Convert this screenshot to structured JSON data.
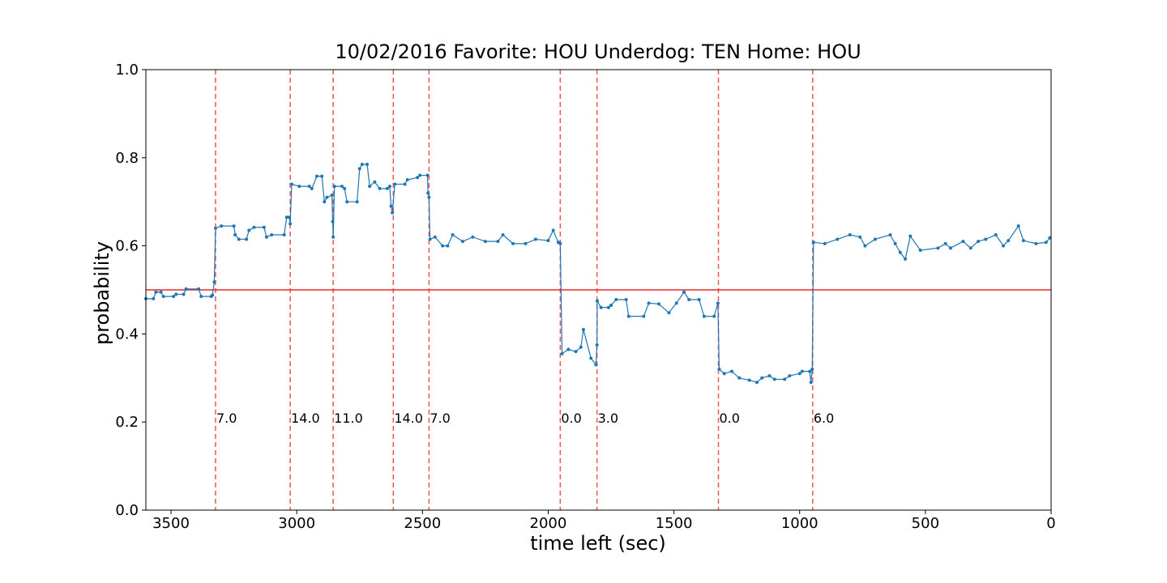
{
  "chart_data": {
    "type": "line",
    "title": "10/02/2016 Favorite: HOU Underdog: TEN Home: HOU",
    "xlabel": "time left (sec)",
    "ylabel": "probability",
    "xlim": [
      3600,
      0
    ],
    "ylim": [
      0,
      1
    ],
    "xticks": [
      3500,
      3000,
      2500,
      2000,
      1500,
      1000,
      500,
      0
    ],
    "yticks": [
      {
        "value": 0,
        "label": "0.0"
      },
      {
        "value": 0.2,
        "label": "0.2"
      },
      {
        "value": 0.4,
        "label": "0.4"
      },
      {
        "value": 0.6,
        "label": "0.6"
      },
      {
        "value": 0.8,
        "label": "0.8"
      },
      {
        "value": 1,
        "label": "1.0"
      }
    ],
    "hline": {
      "value": 0.5,
      "color": "#e8282a"
    },
    "events": {
      "color": "#f0554f",
      "label_y": 0.2,
      "x": [
        3323,
        3026,
        2855,
        2616,
        2474,
        1952,
        1806,
        1323,
        948
      ],
      "labels": [
        "7.0",
        "14.0",
        "11.0",
        "14.0",
        "7.0",
        "0.0",
        "3.0",
        "0.0",
        "6.0"
      ]
    },
    "series": [
      {
        "color": "#1f77b4",
        "x": [
          3600,
          3570,
          3560,
          3540,
          3530,
          3490,
          3480,
          3450,
          3440,
          3390,
          3380,
          3340,
          3335,
          3328,
          3323,
          3300,
          3250,
          3245,
          3230,
          3200,
          3190,
          3170,
          3130,
          3120,
          3100,
          3050,
          3040,
          3030,
          3026,
          3020,
          2990,
          2950,
          2940,
          2920,
          2900,
          2890,
          2880,
          2860,
          2857,
          2855,
          2850,
          2820,
          2810,
          2800,
          2760,
          2750,
          2740,
          2720,
          2710,
          2690,
          2670,
          2640,
          2630,
          2625,
          2620,
          2610,
          2570,
          2560,
          2520,
          2510,
          2480,
          2478,
          2474,
          2470,
          2450,
          2420,
          2400,
          2380,
          2340,
          2300,
          2250,
          2200,
          2180,
          2140,
          2090,
          2050,
          2000,
          1980,
          1960,
          1952,
          1945,
          1920,
          1890,
          1870,
          1860,
          1830,
          1810,
          1806,
          1805,
          1790,
          1760,
          1750,
          1730,
          1690,
          1680,
          1620,
          1600,
          1560,
          1520,
          1490,
          1460,
          1440,
          1400,
          1380,
          1340,
          1325,
          1320,
          1300,
          1270,
          1240,
          1200,
          1170,
          1150,
          1120,
          1100,
          1060,
          1040,
          1000,
          990,
          960,
          955,
          950,
          945,
          900,
          850,
          800,
          760,
          740,
          700,
          640,
          620,
          600,
          580,
          560,
          520,
          450,
          420,
          400,
          350,
          320,
          290,
          260,
          220,
          190,
          170,
          130,
          110,
          60,
          20,
          5
        ],
        "values": [
          0.48,
          0.48,
          0.495,
          0.495,
          0.485,
          0.485,
          0.49,
          0.49,
          0.502,
          0.502,
          0.485,
          0.485,
          0.488,
          0.518,
          0.64,
          0.645,
          0.645,
          0.625,
          0.615,
          0.615,
          0.635,
          0.642,
          0.642,
          0.62,
          0.625,
          0.625,
          0.665,
          0.665,
          0.65,
          0.74,
          0.735,
          0.735,
          0.73,
          0.758,
          0.758,
          0.7,
          0.71,
          0.715,
          0.655,
          0.62,
          0.735,
          0.735,
          0.73,
          0.7,
          0.7,
          0.775,
          0.785,
          0.785,
          0.735,
          0.745,
          0.73,
          0.73,
          0.735,
          0.69,
          0.675,
          0.74,
          0.74,
          0.75,
          0.755,
          0.76,
          0.76,
          0.72,
          0.71,
          0.615,
          0.62,
          0.6,
          0.6,
          0.625,
          0.61,
          0.62,
          0.61,
          0.61,
          0.625,
          0.605,
          0.605,
          0.615,
          0.612,
          0.635,
          0.608,
          0.605,
          0.355,
          0.365,
          0.36,
          0.37,
          0.41,
          0.345,
          0.33,
          0.375,
          0.475,
          0.46,
          0.46,
          0.465,
          0.478,
          0.478,
          0.44,
          0.44,
          0.47,
          0.468,
          0.448,
          0.47,
          0.495,
          0.478,
          0.478,
          0.44,
          0.44,
          0.47,
          0.32,
          0.31,
          0.315,
          0.3,
          0.295,
          0.29,
          0.3,
          0.305,
          0.297,
          0.297,
          0.305,
          0.31,
          0.315,
          0.315,
          0.29,
          0.32,
          0.608,
          0.605,
          0.615,
          0.625,
          0.62,
          0.6,
          0.615,
          0.625,
          0.605,
          0.585,
          0.57,
          0.622,
          0.59,
          0.595,
          0.605,
          0.595,
          0.61,
          0.595,
          0.61,
          0.615,
          0.625,
          0.6,
          0.612,
          0.645,
          0.612,
          0.605,
          0.608,
          0.618
        ]
      }
    ]
  }
}
